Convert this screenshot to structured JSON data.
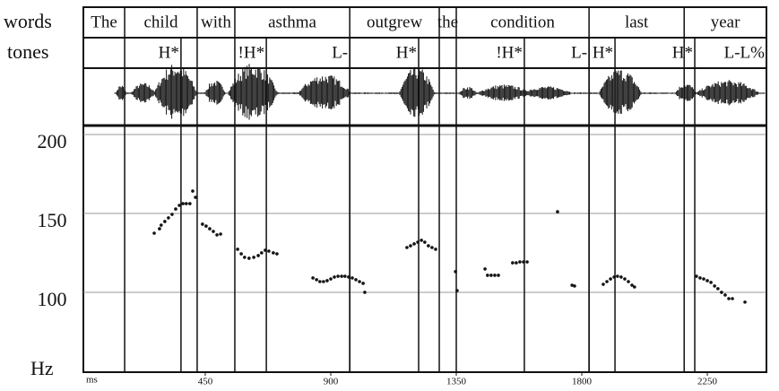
{
  "chart_data": {
    "type": "scatter",
    "words_label": "words",
    "tones_label": "tones",
    "y_label": "Hz",
    "x_label": "ms",
    "words": [
      {
        "label": "The",
        "start": 13,
        "end": 161
      },
      {
        "label": "child",
        "start": 161,
        "end": 421
      },
      {
        "label": "with",
        "start": 421,
        "end": 556
      },
      {
        "label": "asthma",
        "start": 556,
        "end": 968
      },
      {
        "label": "outgrew",
        "start": 968,
        "end": 1289
      },
      {
        "label": "the",
        "start": 1289,
        "end": 1350
      },
      {
        "label": "condition",
        "start": 1350,
        "end": 1826
      },
      {
        "label": "last",
        "start": 1826,
        "end": 2167
      },
      {
        "label": "year",
        "start": 2167,
        "end": 2462
      }
    ],
    "tones": [
      {
        "label": "H*",
        "time": 363
      },
      {
        "label": "!H*",
        "time": 669
      },
      {
        "label": "L-",
        "time": 968
      },
      {
        "label": "H*",
        "time": 1215
      },
      {
        "label": "!H*",
        "time": 1594
      },
      {
        "label": "L-",
        "time": 1826
      },
      {
        "label": "H*",
        "time": 1919
      },
      {
        "label": "H*",
        "time": 2205
      },
      {
        "label": "L-L%",
        "time": 2462
      }
    ],
    "x": [
      267,
      286,
      292,
      305,
      318,
      331,
      344,
      357,
      370,
      382,
      395,
      405,
      415,
      440,
      453,
      466,
      479,
      492,
      505,
      566,
      579,
      591,
      607,
      624,
      640,
      652,
      665,
      678,
      694,
      707,
      836,
      849,
      861,
      874,
      887,
      900,
      913,
      926,
      939,
      951,
      964,
      977,
      990,
      1003,
      1016,
      1022,
      1173,
      1186,
      1199,
      1212,
      1225,
      1237,
      1250,
      1263,
      1276,
      1347,
      1353,
      1453,
      1462,
      1475,
      1488,
      1501,
      1552,
      1565,
      1578,
      1591,
      1604,
      1713,
      1765,
      1774,
      1877,
      1890,
      1903,
      1916,
      1928,
      1941,
      1954,
      1967,
      1980,
      1989,
      2211,
      2224,
      2237,
      2250,
      2263,
      2276,
      2288,
      2301,
      2314,
      2327,
      2340,
      2385
    ],
    "values": [
      137.5,
      140.3,
      142.6,
      144.9,
      147.2,
      149.4,
      152.8,
      155.1,
      156.2,
      156.2,
      156.2,
      164.2,
      160.2,
      143.2,
      142.0,
      140.3,
      138.6,
      136.4,
      136.9,
      127.3,
      124.4,
      122.2,
      121.6,
      122.2,
      123.3,
      125.0,
      126.7,
      126.1,
      125.0,
      124.4,
      109.1,
      108.0,
      106.8,
      106.8,
      107.4,
      108.5,
      109.7,
      110.2,
      110.2,
      110.2,
      109.7,
      109.1,
      108.0,
      106.8,
      105.7,
      100.0,
      128.4,
      129.5,
      130.7,
      131.8,
      133.0,
      131.8,
      129.5,
      128.4,
      127.3,
      113.1,
      101.1,
      114.8,
      110.8,
      110.8,
      110.8,
      110.8,
      118.7,
      118.7,
      119.3,
      119.3,
      119.3,
      151.1,
      104.5,
      104.0,
      105.1,
      106.8,
      108.5,
      109.7,
      110.2,
      109.7,
      108.5,
      106.8,
      104.5,
      103.4,
      110.2,
      109.1,
      108.5,
      107.4,
      106.3,
      104.0,
      102.3,
      100.0,
      98.3,
      96.0,
      96.0,
      93.8
    ],
    "color": "#111111",
    "xlim": [
      13,
      2462
    ],
    "ylim": [
      49.4,
      205.7
    ],
    "xticks": [
      450,
      900,
      1350,
      1800,
      2250
    ],
    "yticks": [
      100,
      150,
      200
    ],
    "grid": true
  }
}
